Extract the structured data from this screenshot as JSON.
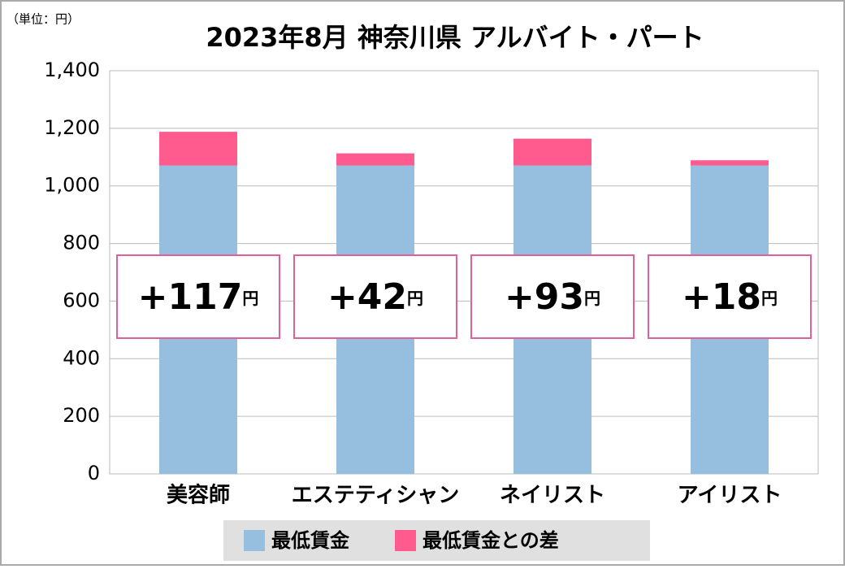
{
  "chart_data": {
    "type": "stacked_bar",
    "unit_label": "（単位：円）",
    "title": "2023年8月 神奈川県 アルバイト・パート",
    "categories": [
      "美容師",
      "エステティシャン",
      "ネイリスト",
      "アイリスト"
    ],
    "series": [
      {
        "name": "最低賃金",
        "color": "#95bedf",
        "values": [
          1071,
          1071,
          1071,
          1071
        ]
      },
      {
        "name": "最低賃金との差",
        "color": "#ff5b8f",
        "values": [
          117,
          42,
          93,
          18
        ],
        "value_labels": [
          "+117",
          "+42",
          "+93",
          "+18"
        ]
      }
    ],
    "value_unit": "円",
    "ylim": [
      0,
      1400
    ],
    "yticks": [
      0,
      200,
      400,
      600,
      800,
      {
        "value": 1000,
        "label": "1,000"
      },
      {
        "value": 1200,
        "label": "1,200"
      },
      {
        "value": 1400,
        "label": "1,400"
      }
    ],
    "grid": true
  }
}
